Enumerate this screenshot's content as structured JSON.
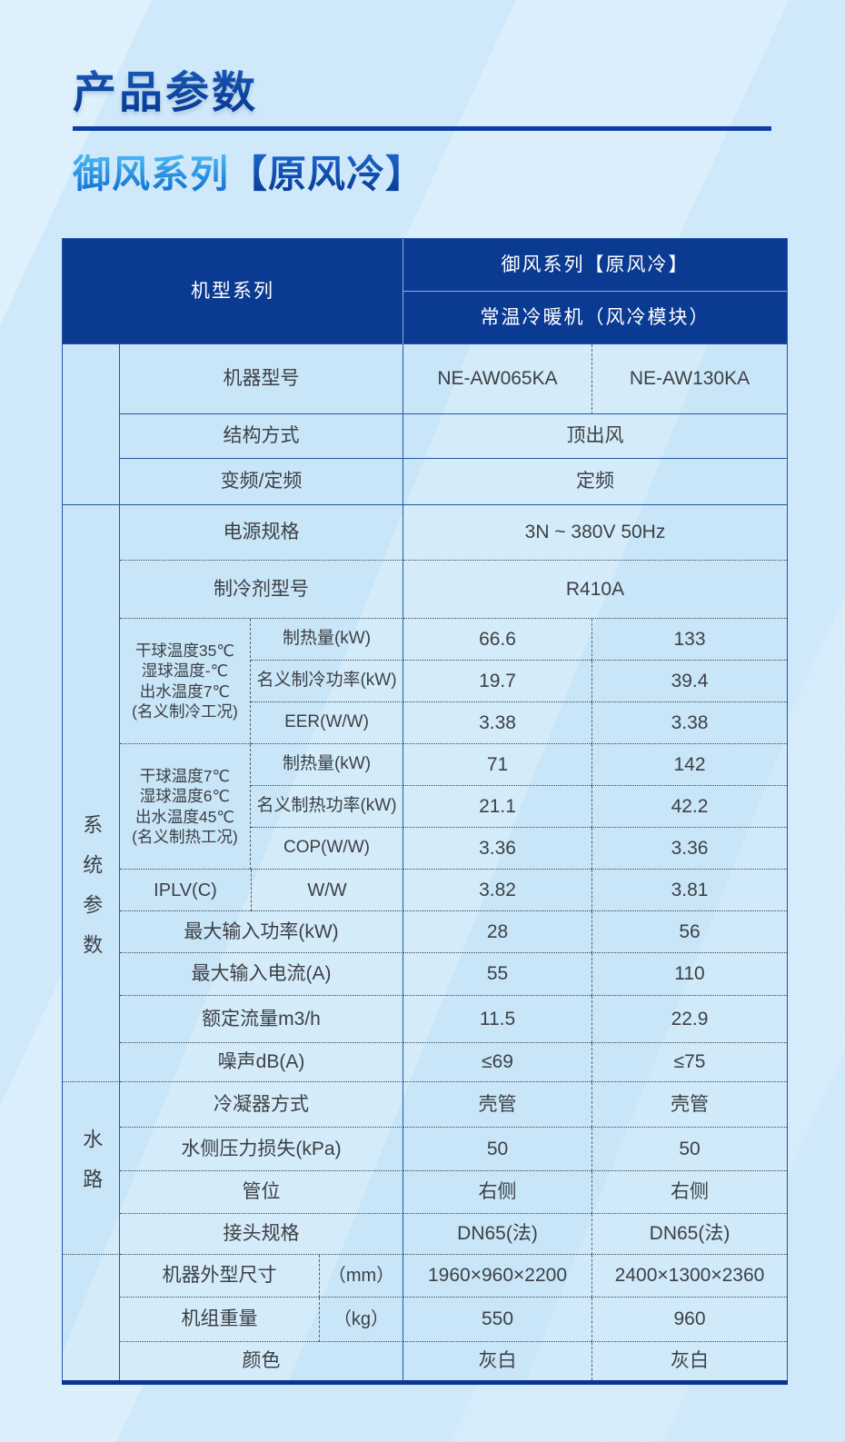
{
  "page": {
    "title": "产品参数",
    "subtitle": {
      "series": "御风系列",
      "variant": "【原风冷】"
    }
  },
  "colors": {
    "header_bg": "#0b3a92",
    "table_border_blue": "#2456a8",
    "bottom_bar_blue": "#0a3494",
    "cell_bg": "#c9e6f8",
    "title_dark_blue": "#0a3e9a",
    "subtitle_light_blue": "#4fbcf5"
  },
  "table": {
    "header": {
      "model_series_label": "机型系列",
      "series_name": "御风系列【原风冷】",
      "machine_type": "常温冷暖机（风冷模块）"
    },
    "model_row": {
      "label": "机器型号",
      "values": [
        "NE-AW065KA",
        "NE-AW130KA"
      ]
    },
    "structure_row": {
      "label": "结构方式",
      "value": "顶出风"
    },
    "frequency_row": {
      "label": "变频/定频",
      "value": "定频"
    },
    "system_section": {
      "name": "系统参数",
      "power_row": {
        "label": "电源规格",
        "value": "3N ~ 380V 50Hz"
      },
      "refrigerant_row": {
        "label": "制冷剂型号",
        "value": "R410A"
      },
      "cooling_block": {
        "condition_lines": [
          "干球温度35℃",
          "湿球温度-℃",
          "出水温度7℃",
          "(名义制冷工况)"
        ],
        "rows": [
          {
            "label": "制热量(kW)",
            "values": [
              "66.6",
              "133"
            ]
          },
          {
            "label": "名义制冷功率(kW)",
            "values": [
              "19.7",
              "39.4"
            ]
          },
          {
            "label": "EER(W/W)",
            "values": [
              "3.38",
              "3.38"
            ]
          }
        ]
      },
      "heating_block": {
        "condition_lines": [
          "干球温度7℃",
          "湿球温度6℃",
          "出水温度45℃",
          "(名义制热工况)"
        ],
        "rows": [
          {
            "label": "制热量(kW)",
            "values": [
              "71",
              "142"
            ]
          },
          {
            "label": "名义制热功率(kW)",
            "values": [
              "21.1",
              "42.2"
            ]
          },
          {
            "label": "COP(W/W)",
            "values": [
              "3.36",
              "3.36"
            ]
          }
        ]
      },
      "iplv_row": {
        "label": "IPLV(C)",
        "unit": "W/W",
        "values": [
          "3.82",
          "3.81"
        ]
      },
      "rows": [
        {
          "label": "最大输入功率(kW)",
          "values": [
            "28",
            "56"
          ]
        },
        {
          "label": "最大输入电流(A)",
          "values": [
            "55",
            "110"
          ]
        },
        {
          "label": "额定流量m3/h",
          "values": [
            "11.5",
            "22.9"
          ]
        },
        {
          "label": "噪声dB(A)",
          "values": [
            "≤69",
            "≤75"
          ]
        }
      ]
    },
    "water_section": {
      "name": "水路",
      "rows": [
        {
          "label": "冷凝器方式",
          "values": [
            "壳管",
            "壳管"
          ]
        },
        {
          "label": "水侧压力损失(kPa)",
          "values": [
            "50",
            "50"
          ]
        },
        {
          "label": "管位",
          "values": [
            "右侧",
            "右侧"
          ]
        },
        {
          "label": "接头规格",
          "values": [
            "DN65(法)",
            "DN65(法)"
          ]
        }
      ]
    },
    "bottom_section": {
      "dimension_row": {
        "label": "机器外型尺寸",
        "unit": "（mm）",
        "values": [
          "1960×960×2200",
          "2400×1300×2360"
        ]
      },
      "weight_row": {
        "label": "机组重量",
        "unit": "（kg）",
        "values": [
          "550",
          "960"
        ]
      },
      "color_row": {
        "label": "颜色",
        "values": [
          "灰白",
          "灰白"
        ]
      }
    }
  }
}
